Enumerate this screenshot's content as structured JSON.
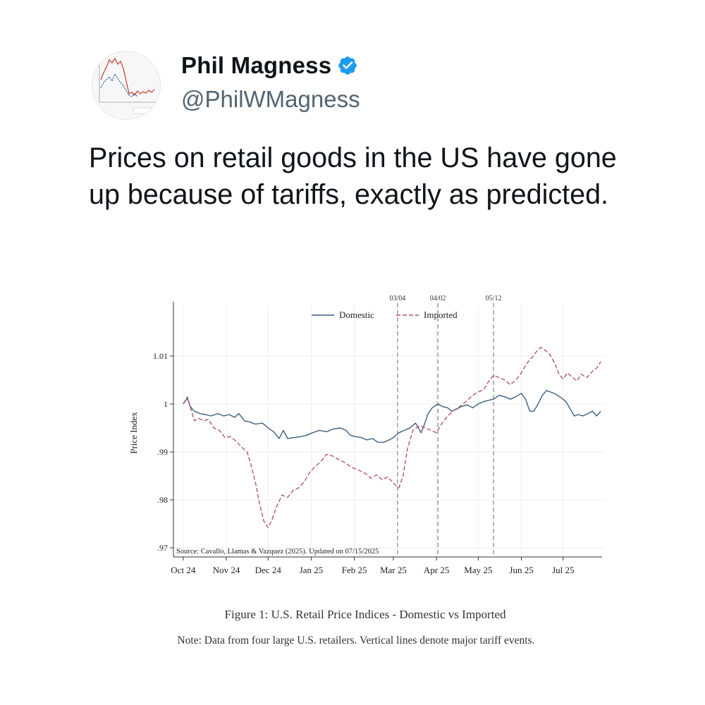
{
  "tweet": {
    "author_name": "Phil Magness",
    "handle": "@PhilWMagness",
    "verified": true,
    "text": "Prices on retail goods in the US have gone up because of tariffs, exactly as predicted."
  },
  "colors": {
    "verified_badge": "#1d9bf0",
    "domestic_line": "#3c5f7f",
    "imported_line": "#b25570",
    "handle_text": "#536471"
  },
  "icons": {
    "verified": "verified-badge-icon"
  },
  "figure": {
    "caption": "Figure 1: U.S. Retail Price Indices - Domestic vs Imported",
    "note": "Note: Data from four large U.S. retailers. Vertical lines denote major tariff events."
  },
  "chart_data": {
    "type": "line",
    "ylabel": "Price Index",
    "xlabel": "",
    "ylim": [
      0.97,
      1.015
    ],
    "y_ticks": [
      {
        "value": 0.97,
        "label": ".97"
      },
      {
        "value": 0.98,
        "label": ".98"
      },
      {
        "value": 0.99,
        "label": ".99"
      },
      {
        "value": 1.0,
        "label": "1"
      },
      {
        "value": 1.01,
        "label": "1.01"
      }
    ],
    "x_ticks": [
      {
        "date": "2024-10-01",
        "label": "Oct 24"
      },
      {
        "date": "2024-11-01",
        "label": "Nov 24"
      },
      {
        "date": "2024-12-01",
        "label": "Dec 24"
      },
      {
        "date": "2025-01-01",
        "label": "Jan 25"
      },
      {
        "date": "2025-02-01",
        "label": "Feb 25"
      },
      {
        "date": "2025-03-01",
        "label": "Mar 25"
      },
      {
        "date": "2025-04-01",
        "label": "Apr 25"
      },
      {
        "date": "2025-05-01",
        "label": "May 25"
      },
      {
        "date": "2025-06-01",
        "label": "Jun 25"
      },
      {
        "date": "2025-07-01",
        "label": "Jul 25"
      }
    ],
    "xlim": [
      "2024-09-24",
      "2025-07-31"
    ],
    "grid": true,
    "legend_position": "top",
    "events": [
      {
        "date": "2025-03-04",
        "label": "03/04"
      },
      {
        "date": "2025-04-02",
        "label": "04/02"
      },
      {
        "date": "2025-05-12",
        "label": "05/12"
      }
    ],
    "source_text": "Source: Cavallo, Llamas & Vazquez (2025). Updated on 07/15/2025",
    "series": [
      {
        "name": "Domestic",
        "style": "solid",
        "points": [
          [
            "2024-10-01",
            1.0
          ],
          [
            "2024-10-04",
            1.0012
          ],
          [
            "2024-10-06",
            0.9995
          ],
          [
            "2024-10-09",
            0.9985
          ],
          [
            "2024-10-13",
            0.998
          ],
          [
            "2024-10-17",
            0.9978
          ],
          [
            "2024-10-21",
            0.9975
          ],
          [
            "2024-10-26",
            0.998
          ],
          [
            "2024-10-30",
            0.9975
          ],
          [
            "2024-11-03",
            0.9978
          ],
          [
            "2024-11-07",
            0.9972
          ],
          [
            "2024-11-10",
            0.998
          ],
          [
            "2024-11-14",
            0.9965
          ],
          [
            "2024-11-18",
            0.9962
          ],
          [
            "2024-11-22",
            0.9958
          ],
          [
            "2024-11-27",
            0.996
          ],
          [
            "2024-12-01",
            0.995
          ],
          [
            "2024-12-05",
            0.9942
          ],
          [
            "2024-12-09",
            0.9928
          ],
          [
            "2024-12-12",
            0.9945
          ],
          [
            "2024-12-15",
            0.9928
          ],
          [
            "2024-12-20",
            0.993
          ],
          [
            "2024-12-25",
            0.9932
          ],
          [
            "2024-12-29",
            0.9935
          ],
          [
            "2025-01-02",
            0.994
          ],
          [
            "2025-01-07",
            0.9945
          ],
          [
            "2025-01-12",
            0.9942
          ],
          [
            "2025-01-17",
            0.9948
          ],
          [
            "2025-01-22",
            0.995
          ],
          [
            "2025-01-26",
            0.9945
          ],
          [
            "2025-01-29",
            0.9935
          ],
          [
            "2025-02-01",
            0.9932
          ],
          [
            "2025-02-06",
            0.993
          ],
          [
            "2025-02-10",
            0.9925
          ],
          [
            "2025-02-14",
            0.9928
          ],
          [
            "2025-02-18",
            0.992
          ],
          [
            "2025-02-22",
            0.992
          ],
          [
            "2025-02-26",
            0.9925
          ],
          [
            "2025-03-01",
            0.993
          ],
          [
            "2025-03-05",
            0.994
          ],
          [
            "2025-03-09",
            0.9945
          ],
          [
            "2025-03-13",
            0.995
          ],
          [
            "2025-03-17",
            0.996
          ],
          [
            "2025-03-19",
            0.995
          ],
          [
            "2025-03-21",
            0.994
          ],
          [
            "2025-03-23",
            0.9955
          ],
          [
            "2025-03-26",
            0.998
          ],
          [
            "2025-03-29",
            0.9992
          ],
          [
            "2025-04-02",
            1.0
          ],
          [
            "2025-04-05",
            0.9995
          ],
          [
            "2025-04-09",
            0.9992
          ],
          [
            "2025-04-12",
            0.9985
          ],
          [
            "2025-04-16",
            0.999
          ],
          [
            "2025-04-19",
            0.9995
          ],
          [
            "2025-04-23",
            0.9998
          ],
          [
            "2025-04-27",
            0.9992
          ],
          [
            "2025-05-01",
            1.0
          ],
          [
            "2025-05-05",
            1.0005
          ],
          [
            "2025-05-09",
            1.0008
          ],
          [
            "2025-05-12",
            1.001
          ],
          [
            "2025-05-16",
            1.0018
          ],
          [
            "2025-05-20",
            1.0015
          ],
          [
            "2025-05-24",
            1.001
          ],
          [
            "2025-05-28",
            1.0015
          ],
          [
            "2025-06-01",
            1.0022
          ],
          [
            "2025-06-04",
            1.001
          ],
          [
            "2025-06-07",
            0.9985
          ],
          [
            "2025-06-10",
            0.9985
          ],
          [
            "2025-06-13",
            1.0
          ],
          [
            "2025-06-16",
            1.0018
          ],
          [
            "2025-06-19",
            1.0028
          ],
          [
            "2025-06-22",
            1.0025
          ],
          [
            "2025-06-26",
            1.002
          ],
          [
            "2025-06-30",
            1.0012
          ],
          [
            "2025-07-03",
            1.0005
          ],
          [
            "2025-07-06",
            0.999
          ],
          [
            "2025-07-09",
            0.9975
          ],
          [
            "2025-07-12",
            0.9978
          ],
          [
            "2025-07-15",
            0.9975
          ],
          [
            "2025-07-19",
            0.998
          ],
          [
            "2025-07-22",
            0.9985
          ],
          [
            "2025-07-25",
            0.9975
          ],
          [
            "2025-07-28",
            0.9985
          ]
        ]
      },
      {
        "name": "Imported",
        "style": "dashed",
        "points": [
          [
            "2024-10-01",
            1.0
          ],
          [
            "2024-10-04",
            1.0015
          ],
          [
            "2024-10-07",
            0.9985
          ],
          [
            "2024-10-09",
            0.9965
          ],
          [
            "2024-10-12",
            0.997
          ],
          [
            "2024-10-16",
            0.9965
          ],
          [
            "2024-10-19",
            0.9968
          ],
          [
            "2024-10-23",
            0.995
          ],
          [
            "2024-10-27",
            0.9945
          ],
          [
            "2024-10-31",
            0.993
          ],
          [
            "2024-11-04",
            0.9932
          ],
          [
            "2024-11-08",
            0.9922
          ],
          [
            "2024-11-12",
            0.991
          ],
          [
            "2024-11-16",
            0.99
          ],
          [
            "2024-11-19",
            0.987
          ],
          [
            "2024-11-22",
            0.9835
          ],
          [
            "2024-11-25",
            0.979
          ],
          [
            "2024-11-28",
            0.9755
          ],
          [
            "2024-12-01",
            0.9742
          ],
          [
            "2024-12-04",
            0.976
          ],
          [
            "2024-12-07",
            0.9785
          ],
          [
            "2024-12-11",
            0.981
          ],
          [
            "2024-12-15",
            0.9805
          ],
          [
            "2024-12-19",
            0.982
          ],
          [
            "2024-12-23",
            0.9825
          ],
          [
            "2024-12-27",
            0.9838
          ],
          [
            "2024-12-31",
            0.9858
          ],
          [
            "2025-01-04",
            0.987
          ],
          [
            "2025-01-08",
            0.988
          ],
          [
            "2025-01-12",
            0.9895
          ],
          [
            "2025-01-16",
            0.9892
          ],
          [
            "2025-01-20",
            0.9885
          ],
          [
            "2025-01-25",
            0.9878
          ],
          [
            "2025-01-30",
            0.9868
          ],
          [
            "2025-02-04",
            0.9862
          ],
          [
            "2025-02-09",
            0.9855
          ],
          [
            "2025-02-13",
            0.9845
          ],
          [
            "2025-02-17",
            0.9852
          ],
          [
            "2025-02-21",
            0.9842
          ],
          [
            "2025-02-25",
            0.9848
          ],
          [
            "2025-03-01",
            0.9835
          ],
          [
            "2025-03-03",
            0.983
          ],
          [
            "2025-03-05",
            0.9825
          ],
          [
            "2025-03-08",
            0.985
          ],
          [
            "2025-03-11",
            0.9905
          ],
          [
            "2025-03-15",
            0.9945
          ],
          [
            "2025-03-20",
            0.9955
          ],
          [
            "2025-03-24",
            0.995
          ],
          [
            "2025-03-28",
            0.9945
          ],
          [
            "2025-04-01",
            0.994
          ],
          [
            "2025-04-05",
            0.996
          ],
          [
            "2025-04-09",
            0.9975
          ],
          [
            "2025-04-14",
            0.9988
          ],
          [
            "2025-04-18",
            0.9995
          ],
          [
            "2025-04-22",
            1.0005
          ],
          [
            "2025-04-27",
            1.0018
          ],
          [
            "2025-05-01",
            1.0025
          ],
          [
            "2025-05-05",
            1.003
          ],
          [
            "2025-05-08",
            1.0045
          ],
          [
            "2025-05-12",
            1.006
          ],
          [
            "2025-05-16",
            1.0055
          ],
          [
            "2025-05-20",
            1.005
          ],
          [
            "2025-05-24",
            1.004
          ],
          [
            "2025-05-28",
            1.005
          ],
          [
            "2025-06-01",
            1.0065
          ],
          [
            "2025-06-05",
            1.0085
          ],
          [
            "2025-06-09",
            1.0098
          ],
          [
            "2025-06-12",
            1.011
          ],
          [
            "2025-06-15",
            1.0118
          ],
          [
            "2025-06-18",
            1.0112
          ],
          [
            "2025-06-21",
            1.0105
          ],
          [
            "2025-06-25",
            1.0085
          ],
          [
            "2025-06-28",
            1.0062
          ],
          [
            "2025-07-01",
            1.0052
          ],
          [
            "2025-07-04",
            1.0065
          ],
          [
            "2025-07-08",
            1.0055
          ],
          [
            "2025-07-11",
            1.0048
          ],
          [
            "2025-07-14",
            1.0062
          ],
          [
            "2025-07-18",
            1.0055
          ],
          [
            "2025-07-22",
            1.0068
          ],
          [
            "2025-07-25",
            1.0075
          ],
          [
            "2025-07-28",
            1.0088
          ]
        ]
      }
    ]
  }
}
